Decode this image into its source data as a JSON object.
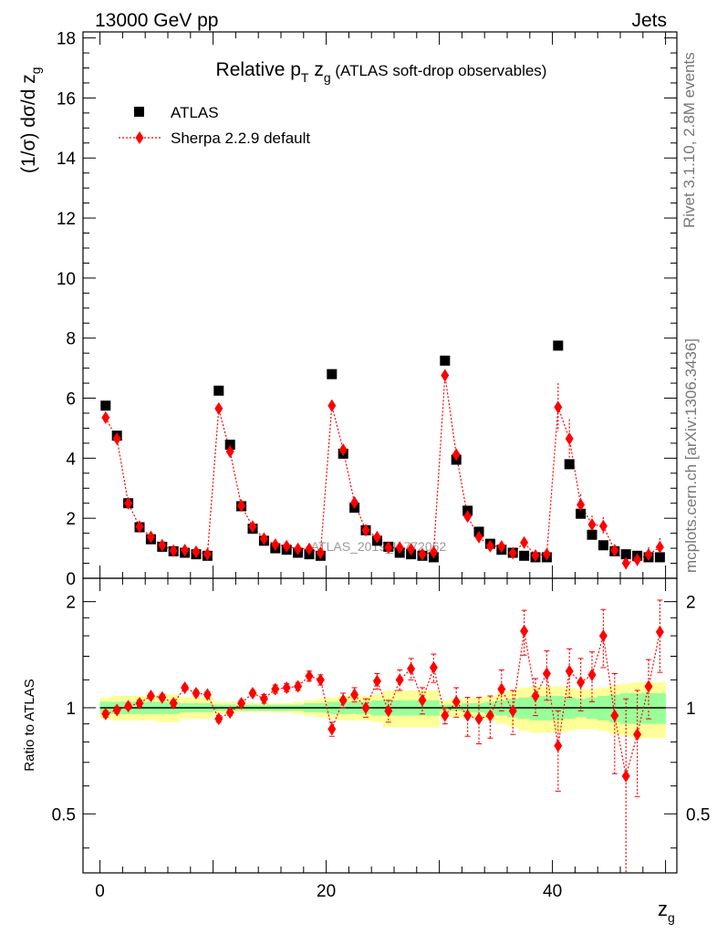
{
  "header": {
    "left": "13000 GeV pp",
    "right": "Jets"
  },
  "side_labels": {
    "rivet": "Rivet 3.1.10,  2.8M events",
    "mcplots": "mcplots.cern.ch [arXiv:1306.3436]"
  },
  "watermark": "ATLAS_2019_I1772062",
  "chart_data": [
    {
      "type": "scatter",
      "title": "Relative p_T z_g (ATLAS soft-drop observables)",
      "title_parts": {
        "main": "Relative p",
        "sub_T": "T",
        "mid": " z",
        "sub_g": "g",
        "tail": " (ATLAS soft-drop observables)"
      },
      "ylabel": "(1/σ) dσ/d z_g",
      "ylabel_parts": {
        "main": "(1/σ) dσ/d z",
        "sub": "g"
      },
      "xlim": [
        -1.5,
        51
      ],
      "ylim": [
        0,
        18.2
      ],
      "yticks": [
        0,
        2,
        4,
        6,
        8,
        10,
        12,
        14,
        16,
        18
      ],
      "legend_position": "top-left",
      "x": [
        0.5,
        1.5,
        2.5,
        3.5,
        4.5,
        5.5,
        6.5,
        7.5,
        8.5,
        9.5,
        10.5,
        11.5,
        12.5,
        13.5,
        14.5,
        15.5,
        16.5,
        17.5,
        18.5,
        19.5,
        20.5,
        21.5,
        22.5,
        23.5,
        24.5,
        25.5,
        26.5,
        27.5,
        28.5,
        29.5,
        30.5,
        31.5,
        32.5,
        33.5,
        34.5,
        35.5,
        36.5,
        37.5,
        38.5,
        39.5,
        40.5,
        41.5,
        42.5,
        43.5,
        44.5,
        45.5,
        46.5,
        47.5,
        48.5,
        49.5
      ],
      "series": [
        {
          "name": "ATLAS",
          "color": "#000000",
          "marker": "square",
          "values": [
            5.75,
            4.75,
            2.5,
            1.7,
            1.3,
            1.05,
            0.9,
            0.85,
            0.8,
            0.75,
            6.25,
            4.45,
            2.4,
            1.65,
            1.25,
            1.0,
            0.95,
            0.85,
            0.8,
            0.75,
            6.8,
            4.15,
            2.35,
            1.6,
            1.25,
            1.05,
            0.85,
            0.8,
            0.75,
            0.7,
            7.25,
            3.95,
            2.25,
            1.55,
            1.15,
            0.95,
            0.85,
            0.75,
            0.7,
            0.7,
            7.75,
            3.8,
            2.15,
            1.45,
            1.1,
            0.9,
            0.8,
            0.75,
            0.7,
            0.7
          ]
        },
        {
          "name": "Sherpa 2.2.9 default",
          "color": "#ff0000",
          "marker": "diamond",
          "line": "dotted",
          "values": [
            5.35,
            4.65,
            2.5,
            1.72,
            1.38,
            1.1,
            0.92,
            0.94,
            0.88,
            0.8,
            5.65,
            4.22,
            2.42,
            1.72,
            1.32,
            1.12,
            1.07,
            0.98,
            0.98,
            0.85,
            5.75,
            4.28,
            2.52,
            1.6,
            1.37,
            1.02,
            1.02,
            0.97,
            0.8,
            0.87,
            6.76,
            4.12,
            2.06,
            1.37,
            1.07,
            1.06,
            0.84,
            1.19,
            0.76,
            0.8,
            5.7,
            4.65,
            2.45,
            1.79,
            1.74,
            0.93,
            0.5,
            0.62,
            0.79,
            1.04
          ],
          "errors": [
            0.08,
            0.07,
            0.04,
            0.03,
            0.03,
            0.03,
            0.03,
            0.03,
            0.03,
            0.03,
            0.08,
            0.07,
            0.05,
            0.04,
            0.04,
            0.04,
            0.04,
            0.04,
            0.04,
            0.04,
            0.1,
            0.08,
            0.06,
            0.05,
            0.05,
            0.05,
            0.06,
            0.06,
            0.06,
            0.07,
            0.15,
            0.12,
            0.1,
            0.1,
            0.1,
            0.12,
            0.12,
            0.14,
            0.14,
            0.16,
            0.8,
            0.65,
            0.35,
            0.3,
            0.3,
            0.2,
            0.2,
            0.22,
            0.25,
            0.3
          ]
        }
      ]
    },
    {
      "type": "scatter",
      "ylabel": "Ratio to ATLAS",
      "xlabel": "z_g",
      "xlabel_parts": {
        "main": "z",
        "sub": "g"
      },
      "xlim": [
        -1.5,
        51
      ],
      "ylim": [
        0.34,
        2.33
      ],
      "yticks": [
        0.5,
        1,
        2
      ],
      "xticks": [
        0,
        20,
        40
      ],
      "reference_line": 1,
      "band_colors": {
        "inner": "#99ff99",
        "outer": "#ffff99"
      },
      "bands": {
        "inner": [
          0.04,
          0.04,
          0.04,
          0.04,
          0.04,
          0.04,
          0.04,
          0.03,
          0.03,
          0.03,
          0.02,
          0.02,
          0.02,
          0.02,
          0.02,
          0.02,
          0.02,
          0.02,
          0.03,
          0.03,
          0.04,
          0.04,
          0.04,
          0.04,
          0.05,
          0.05,
          0.05,
          0.05,
          0.05,
          0.05,
          0.02,
          0.02,
          0.03,
          0.03,
          0.04,
          0.05,
          0.06,
          0.07,
          0.08,
          0.08,
          0.08,
          0.07,
          0.06,
          0.07,
          0.08,
          0.09,
          0.1,
          0.1,
          0.1,
          0.1
        ],
        "outer": [
          0.07,
          0.08,
          0.08,
          0.08,
          0.08,
          0.09,
          0.09,
          0.07,
          0.07,
          0.07,
          0.04,
          0.04,
          0.03,
          0.03,
          0.03,
          0.03,
          0.03,
          0.04,
          0.05,
          0.06,
          0.07,
          0.08,
          0.08,
          0.08,
          0.09,
          0.12,
          0.12,
          0.12,
          0.12,
          0.12,
          0.05,
          0.06,
          0.06,
          0.07,
          0.08,
          0.1,
          0.12,
          0.14,
          0.15,
          0.15,
          0.15,
          0.14,
          0.13,
          0.13,
          0.14,
          0.16,
          0.17,
          0.18,
          0.18,
          0.18
        ]
      },
      "values": [
        0.96,
        0.985,
        1.01,
        1.03,
        1.08,
        1.07,
        1.03,
        1.14,
        1.1,
        1.09,
        0.93,
        0.97,
        1.03,
        1.1,
        1.06,
        1.13,
        1.14,
        1.15,
        1.23,
        1.2,
        0.87,
        1.05,
        1.09,
        1.0,
        1.19,
        0.98,
        1.2,
        1.29,
        1.05,
        1.3,
        0.95,
        1.04,
        0.95,
        0.93,
        0.95,
        1.13,
        0.98,
        1.65,
        1.08,
        1.25,
        0.78,
        1.27,
        1.18,
        1.24,
        1.6,
        0.95,
        0.64,
        0.84,
        1.15,
        1.64
      ],
      "errors": [
        0.02,
        0.02,
        0.02,
        0.02,
        0.02,
        0.02,
        0.02,
        0.02,
        0.02,
        0.02,
        0.02,
        0.02,
        0.02,
        0.02,
        0.03,
        0.03,
        0.03,
        0.03,
        0.04,
        0.04,
        0.04,
        0.05,
        0.05,
        0.06,
        0.06,
        0.07,
        0.08,
        0.09,
        0.09,
        0.12,
        0.05,
        0.1,
        0.12,
        0.14,
        0.13,
        0.15,
        0.14,
        0.24,
        0.13,
        0.2,
        0.2,
        0.2,
        0.2,
        0.2,
        0.3,
        0.3,
        0.42,
        0.28,
        0.22,
        0.38
      ]
    }
  ]
}
